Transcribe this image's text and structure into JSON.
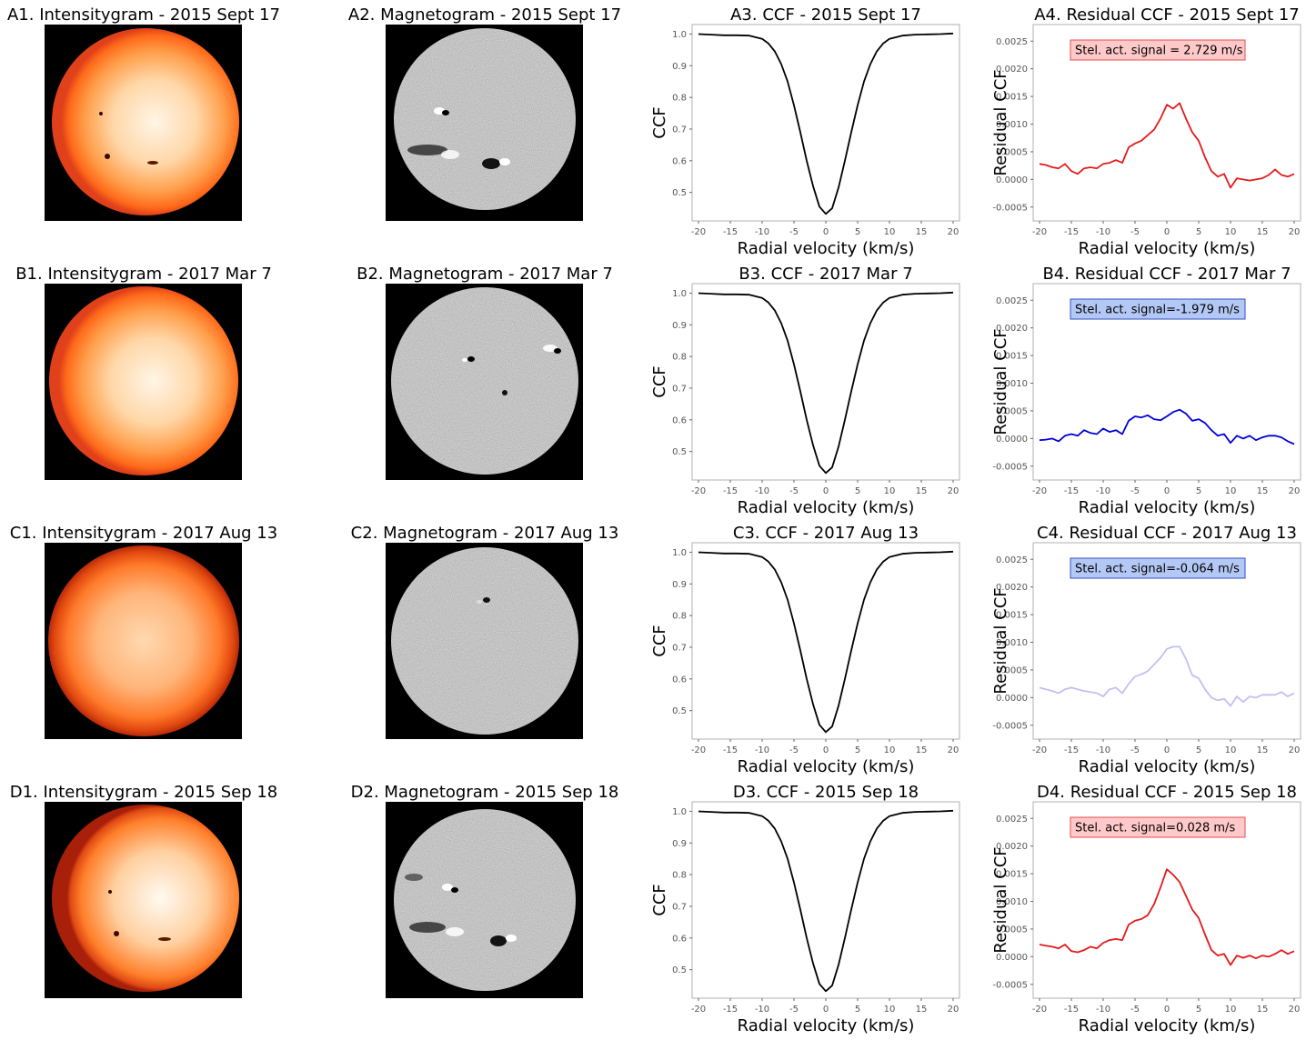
{
  "figure": {
    "rows": [
      {
        "intensity_title": "A1. Intensitygram - 2015 Sept 17",
        "magnetogram_title": "A2. Magnetogram - 2015 Sept 17",
        "ccf_title": "A3. CCF - 2015 Sept 17",
        "residual_title": "A4. Residual CCF - 2015 Sept 17",
        "signal_label": "Stel. act. signal = 2.729 m/s",
        "residual_color": "#e41a1c",
        "box_fill": "#ffc9c9",
        "box_edge": "#e05050"
      },
      {
        "intensity_title": "B1. Intensitygram - 2017 Mar 7",
        "magnetogram_title": "B2. Magnetogram - 2017 Mar 7",
        "ccf_title": "B3. CCF - 2017 Mar 7",
        "residual_title": "B4. Residual CCF - 2017 Mar 7",
        "signal_label": "Stel. act. signal=-1.979 m/s",
        "residual_color": "#0000dd",
        "box_fill": "#b4c8f5",
        "box_edge": "#3050c0"
      },
      {
        "intensity_title": "C1. Intensitygram - 2017 Aug 13",
        "magnetogram_title": "C2. Magnetogram - 2017 Aug 13",
        "ccf_title": "C3. CCF - 2017 Aug 13",
        "residual_title": "C4. Residual CCF - 2017 Aug 13",
        "signal_label": "Stel. act. signal=-0.064 m/s",
        "residual_color": "#c0c0f4",
        "box_fill": "#b4c8f5",
        "box_edge": "#3050c0"
      },
      {
        "intensity_title": "D1. Intensitygram - 2015 Sep 18",
        "magnetogram_title": "D2. Magnetogram - 2015 Sep 18",
        "ccf_title": "D3. CCF - 2015 Sep 18",
        "residual_title": "D4. Residual CCF - 2015 Sep 18",
        "signal_label": "Stel. act. signal=0.028 m/s",
        "residual_color": "#e41a1c",
        "box_fill": "#ffc9c9",
        "box_edge": "#e05050"
      }
    ]
  },
  "chart_data": [
    {
      "type": "line",
      "panel": "CCF",
      "xlabel": "Radial velocity (km/s)",
      "ylabel": "CCF",
      "xlim": [
        -21,
        21
      ],
      "ylim": [
        0.41,
        1.03
      ],
      "xticks": [
        "-20",
        "-15",
        "-10",
        "-5",
        "0",
        "5",
        "10",
        "15",
        "20"
      ],
      "yticks": [
        "0.5",
        "0.6",
        "0.7",
        "0.8",
        "0.9",
        "1.0"
      ],
      "x": [
        -20,
        -18,
        -16,
        -14,
        -12,
        -10,
        -9,
        -8,
        -7,
        -6,
        -5,
        -4,
        -3,
        -2,
        -1,
        0,
        1,
        2,
        3,
        4,
        5,
        6,
        7,
        8,
        9,
        10,
        12,
        14,
        16,
        18,
        20
      ],
      "values": [
        1.0,
        0.998,
        0.996,
        0.996,
        0.995,
        0.985,
        0.97,
        0.945,
        0.905,
        0.85,
        0.775,
        0.69,
        0.6,
        0.52,
        0.455,
        0.432,
        0.45,
        0.515,
        0.6,
        0.69,
        0.775,
        0.85,
        0.905,
        0.945,
        0.97,
        0.985,
        0.995,
        0.998,
        0.999,
        1.0,
        1.002
      ],
      "color": "#000000",
      "series_by_row": [
        "2015 Sept 17",
        "2017 Mar 7",
        "2017 Aug 13",
        "2015 Sep 18"
      ]
    },
    {
      "type": "line",
      "panel": "Residual CCF",
      "xlabel": "Radial velocity (km/s)",
      "ylabel": "Residual CCF",
      "xlim": [
        -21,
        21
      ],
      "ylim": [
        -0.00075,
        0.0028
      ],
      "xticks": [
        "-20",
        "-15",
        "-10",
        "-5",
        "0",
        "5",
        "10",
        "15",
        "20"
      ],
      "yticks": [
        "-0.0005",
        "0.0000",
        "0.0005",
        "0.0010",
        "0.0015",
        "0.0020",
        "0.0025"
      ],
      "x": [
        -20,
        -19,
        -18,
        -17,
        -16,
        -15,
        -14,
        -13,
        -12,
        -11,
        -10,
        -9,
        -8,
        -7,
        -6,
        -5,
        -4,
        -3,
        -2,
        -1,
        0,
        1,
        2,
        3,
        4,
        5,
        6,
        7,
        8,
        9,
        10,
        11,
        12,
        13,
        14,
        15,
        16,
        17,
        18,
        19,
        20
      ],
      "series": [
        {
          "name": "2015 Sept 17",
          "values": [
            0.00028,
            0.00026,
            0.00022,
            0.0002,
            0.00028,
            0.00015,
            0.0001,
            0.0002,
            0.00022,
            0.0002,
            0.00028,
            0.0003,
            0.00035,
            0.0003,
            0.00058,
            0.00065,
            0.0007,
            0.0008,
            0.0009,
            0.0011,
            0.00135,
            0.00128,
            0.00138,
            0.0011,
            0.00085,
            0.0007,
            0.0004,
            0.00015,
            5e-05,
            0.0001,
            -0.00015,
            2e-05,
            0.0,
            -2e-05,
            0.0,
            2e-05,
            8e-05,
            0.00018,
            8e-05,
            5e-05,
            0.0001
          ]
        },
        {
          "name": "2017 Mar 7",
          "values": [
            -3e-05,
            -2e-05,
            0.0,
            -5e-05,
            5e-05,
            8e-05,
            5e-05,
            0.00015,
            0.0001,
            8e-05,
            0.00018,
            0.00012,
            0.00015,
            8e-05,
            0.00032,
            0.0004,
            0.00038,
            0.00042,
            0.00035,
            0.00033,
            0.0004,
            0.00048,
            0.00052,
            0.00045,
            0.00032,
            0.00035,
            0.00028,
            0.00015,
            5e-05,
            8e-05,
            -8e-05,
            5e-05,
            0.0,
            5e-05,
            -3e-05,
            2e-05,
            5e-05,
            5e-05,
            2e-05,
            -5e-05,
            -0.0001
          ]
        },
        {
          "name": "2017 Aug 13",
          "values": [
            0.00018,
            0.00015,
            0.00012,
            8e-05,
            0.00015,
            0.00018,
            0.00015,
            0.00012,
            0.0001,
            8e-05,
            2e-05,
            0.00015,
            0.00018,
            8e-05,
            0.00025,
            0.00038,
            0.00042,
            0.00048,
            0.0006,
            0.00072,
            0.00088,
            0.00092,
            0.00092,
            0.0007,
            0.0004,
            0.00035,
            0.00015,
            0.0,
            -5e-05,
            -2e-05,
            -0.00015,
            2e-05,
            -8e-05,
            2e-05,
            0.0,
            5e-05,
            5e-05,
            5e-05,
            0.0001,
            2e-05,
            8e-05
          ]
        },
        {
          "name": "2015 Sep 18",
          "values": [
            0.00022,
            0.0002,
            0.00018,
            0.00015,
            0.00022,
            0.0001,
            8e-05,
            0.00012,
            0.00018,
            0.00015,
            0.00025,
            0.0003,
            0.00032,
            0.0003,
            0.00058,
            0.00065,
            0.00068,
            0.00075,
            0.00095,
            0.00125,
            0.00158,
            0.00148,
            0.00135,
            0.0011,
            0.00085,
            0.0007,
            0.0004,
            0.00012,
            2e-05,
            5e-05,
            -0.00015,
            2e-05,
            -2e-05,
            2e-05,
            -3e-05,
            2e-05,
            0.0,
            5e-05,
            0.00012,
            5e-05,
            0.0001
          ]
        }
      ]
    }
  ]
}
